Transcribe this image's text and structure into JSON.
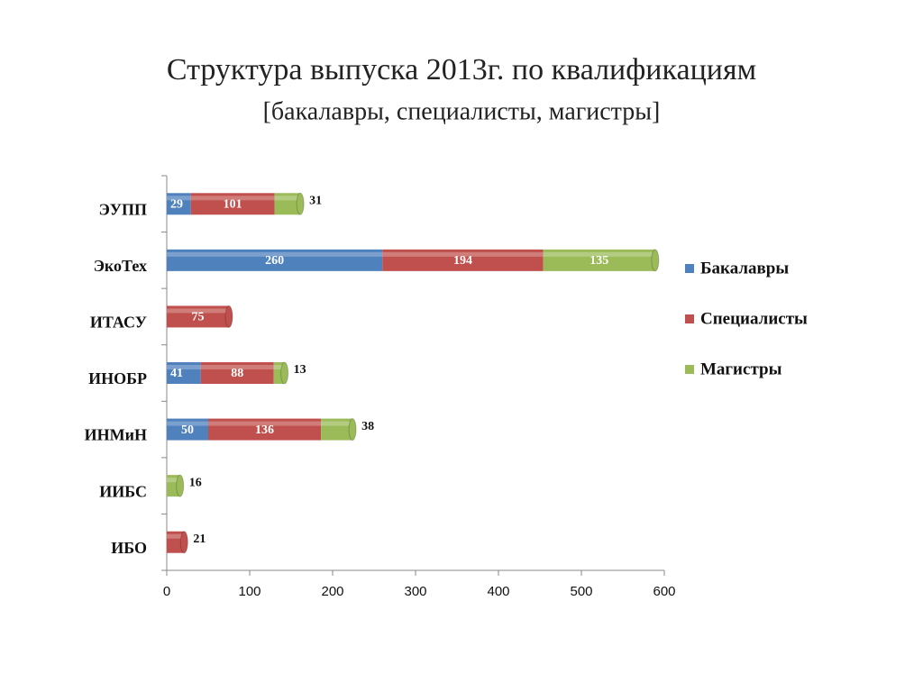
{
  "chart_data": {
    "type": "bar",
    "orientation": "horizontal",
    "stacked": true,
    "title": "Структура выпуска 2013г. по квалификациям",
    "subtitle": "[бакалавры, специалисты, магистры]",
    "categories": [
      "ЭУПП",
      "ЭкоТех",
      "ИТАСУ",
      "ИНОБР",
      "ИНМиН",
      "ИИБС",
      "ИБО"
    ],
    "series": [
      {
        "name": "Бакалавры",
        "color": "#4f81bd",
        "values": [
          29,
          260,
          null,
          41,
          50,
          null,
          null
        ]
      },
      {
        "name": "Специалисты",
        "color": "#c0504d",
        "values": [
          101,
          194,
          75,
          88,
          136,
          null,
          21
        ]
      },
      {
        "name": "Магистры",
        "color": "#9bbb59",
        "values": [
          31,
          135,
          null,
          13,
          38,
          16,
          null
        ]
      }
    ],
    "xlim": [
      0,
      600
    ],
    "xticks": [
      0,
      100,
      200,
      300,
      400,
      500,
      600
    ],
    "grid": false,
    "legend": "right"
  }
}
